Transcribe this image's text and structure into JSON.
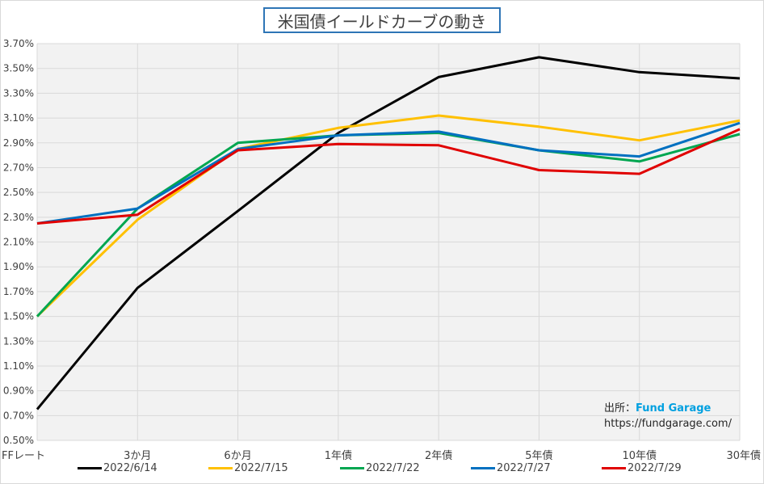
{
  "title": "米国債イールドカーブの動き",
  "source": {
    "label": "出所：",
    "brand": "Fund Garage",
    "url": "https://fundgarage.com/"
  },
  "chart_data": {
    "type": "line",
    "categories": [
      "FFレート",
      "3か月",
      "6か月",
      "1年債",
      "2年債",
      "5年債",
      "10年債",
      "30年債"
    ],
    "ylim": [
      0.5,
      3.7
    ],
    "yticks": [
      "0.50%",
      "0.70%",
      "0.90%",
      "1.10%",
      "1.30%",
      "1.50%",
      "1.70%",
      "1.90%",
      "2.10%",
      "2.30%",
      "2.50%",
      "2.70%",
      "2.90%",
      "3.10%",
      "3.30%",
      "3.50%",
      "3.70%"
    ],
    "grid": true,
    "legend_position": "bottom",
    "series": [
      {
        "name": "2022/6/14",
        "color": "#000000",
        "values": [
          0.75,
          1.73,
          2.35,
          2.98,
          3.43,
          3.59,
          3.47,
          3.42
        ]
      },
      {
        "name": "2022/7/15",
        "color": "#ffc000",
        "values": [
          1.5,
          2.28,
          2.85,
          3.02,
          3.12,
          3.03,
          2.92,
          3.08
        ]
      },
      {
        "name": "2022/7/22",
        "color": "#00a650",
        "values": [
          1.5,
          2.37,
          2.9,
          2.96,
          2.98,
          2.84,
          2.75,
          2.97
        ]
      },
      {
        "name": "2022/7/27",
        "color": "#0070c0",
        "values": [
          2.25,
          2.37,
          2.85,
          2.96,
          2.99,
          2.84,
          2.79,
          3.06
        ]
      },
      {
        "name": "2022/7/29",
        "color": "#e00000",
        "values": [
          2.25,
          2.32,
          2.84,
          2.89,
          2.88,
          2.68,
          2.65,
          3.01
        ]
      }
    ]
  }
}
